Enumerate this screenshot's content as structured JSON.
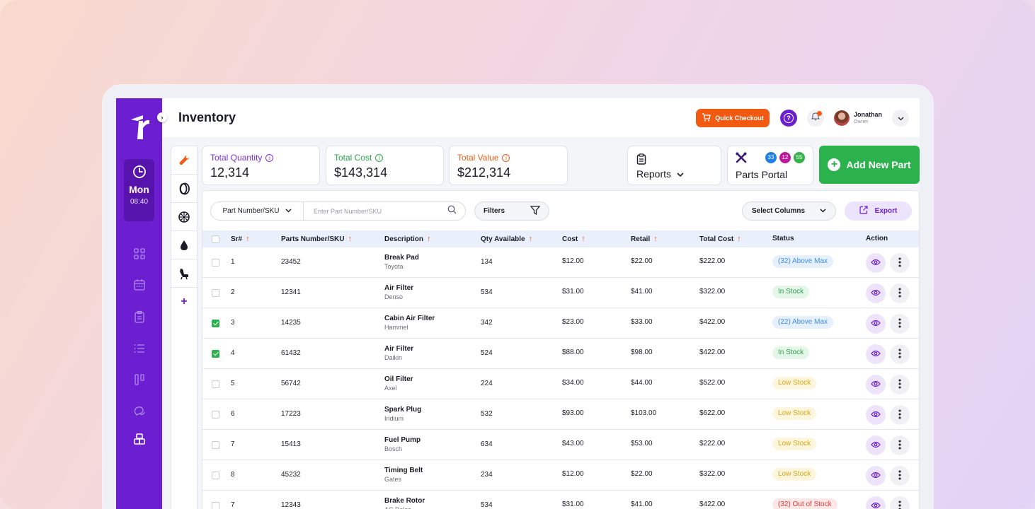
{
  "header": {
    "title": "Inventory",
    "quick_checkout": "Quick Checkout",
    "user_name": "Jonathan",
    "user_role": "Owner"
  },
  "sidebar": {
    "day": "Mon",
    "time": "08:40",
    "icons": [
      "grid-icon",
      "calendar-icon",
      "clipboard-icon",
      "list-icon",
      "kanban-icon",
      "chat-icon",
      "boxes-icon"
    ]
  },
  "stats": {
    "total_quantity_label": "Total Quantity",
    "total_quantity": "12,314",
    "total_cost_label": "Total Cost",
    "total_cost": "$143,314",
    "total_value_label": "Total Value",
    "total_value": "$212,314"
  },
  "reports_label": "Reports",
  "portal": {
    "label": "Parts Portal",
    "badges": [
      "33",
      "12",
      "55"
    ]
  },
  "add_part_label": "Add New Part",
  "toolbar": {
    "search_type": "Part Number/SKU",
    "search_placeholder": "Enter Part Number/SKU",
    "filters": "Filters",
    "select_columns": "Select Columns",
    "export": "Export"
  },
  "columns": {
    "sr": "Sr#",
    "sku": "Parts Number/SKU",
    "desc": "Description",
    "qty": "Qty Available",
    "cost": "Cost",
    "retail": "Retail",
    "total": "Total Cost",
    "status": "Status",
    "action": "Action"
  },
  "rows": [
    {
      "sr": "1",
      "sku": "23452",
      "name": "Break Pad",
      "brand": "Toyota",
      "qty": "134",
      "cost": "$12.00",
      "retail": "$22.00",
      "total": "$222.00",
      "status": "(32) Above Max",
      "status_kind": "blue",
      "checked": false
    },
    {
      "sr": "2",
      "sku": "12341",
      "name": "Air Filter",
      "brand": "Denso",
      "qty": "534",
      "cost": "$31.00",
      "retail": "$41.00",
      "total": "$322.00",
      "status": "In Stock",
      "status_kind": "green",
      "checked": false
    },
    {
      "sr": "3",
      "sku": "14235",
      "name": "Cabin Air Filter",
      "brand": "Hammel",
      "qty": "342",
      "cost": "$23.00",
      "retail": "$33.00",
      "total": "$422.00",
      "status": "(22) Above Max",
      "status_kind": "blue",
      "checked": true
    },
    {
      "sr": "4",
      "sku": "61432",
      "name": "Air Filter",
      "brand": "Daikin",
      "qty": "524",
      "cost": "$88.00",
      "retail": "$98.00",
      "total": "$422.00",
      "status": "In Stock",
      "status_kind": "green",
      "checked": true
    },
    {
      "sr": "5",
      "sku": "56742",
      "name": "Oil Filter",
      "brand": "Axel",
      "qty": "224",
      "cost": "$34.00",
      "retail": "$44.00",
      "total": "$522.00",
      "status": "Low Stock",
      "status_kind": "yellow",
      "checked": false
    },
    {
      "sr": "6",
      "sku": "17223",
      "name": "Spark Plug",
      "brand": "Iridium",
      "qty": "532",
      "cost": "$93.00",
      "retail": "$103.00",
      "total": "$622.00",
      "status": "Low Stock",
      "status_kind": "yellow",
      "checked": false
    },
    {
      "sr": "7",
      "sku": "15413",
      "name": "Fuel Pump",
      "brand": "Bosch",
      "qty": "634",
      "cost": "$43.00",
      "retail": "$53.00",
      "total": "$222.00",
      "status": "Low Stock",
      "status_kind": "yellow",
      "checked": false
    },
    {
      "sr": "8",
      "sku": "45232",
      "name": "Timing Belt",
      "brand": "Gates",
      "qty": "234",
      "cost": "$12.00",
      "retail": "$22.00",
      "total": "$322.00",
      "status": "Low Stock",
      "status_kind": "yellow",
      "checked": false
    },
    {
      "sr": "7",
      "sku": "12343",
      "name": "Brake Rotor",
      "brand": "AC Delco",
      "qty": "534",
      "cost": "$31.00",
      "retail": "$41.00",
      "total": "$422.00",
      "status": "(32) Out of Stock",
      "status_kind": "red",
      "checked": false
    }
  ],
  "colors": {
    "brand_purple": "#6c1fd0",
    "accent_orange": "#f25a12",
    "success_green": "#2bb24c"
  }
}
